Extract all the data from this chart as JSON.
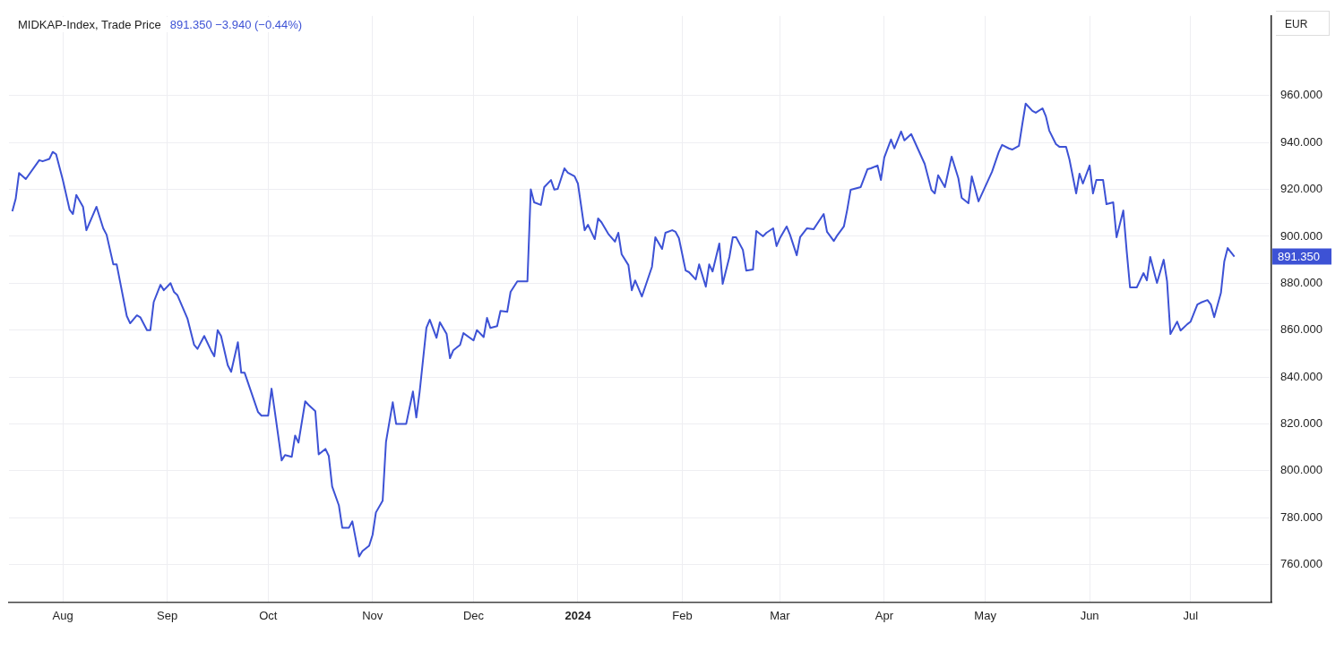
{
  "chart_data": {
    "type": "line",
    "title": "MIDKAP-Index, Trade Price",
    "subtitle": "891.350 −3.940 (−0.44%)",
    "ylabel": "EUR",
    "x": [
      "2023-07-17",
      "2023-07-18",
      "2023-07-19",
      "2023-07-21",
      "2023-07-25",
      "2023-07-26",
      "2023-07-28",
      "2023-07-29",
      "2023-07-30",
      "2023-08-01",
      "2023-08-03",
      "2023-08-04",
      "2023-08-05",
      "2023-08-07",
      "2023-08-08",
      "2023-08-11",
      "2023-08-13",
      "2023-08-14",
      "2023-08-16",
      "2023-08-17",
      "2023-08-20",
      "2023-08-21",
      "2023-08-23",
      "2023-08-24",
      "2023-08-26",
      "2023-08-27",
      "2023-08-28",
      "2023-08-30",
      "2023-08-31",
      "2023-09-02",
      "2023-09-03",
      "2023-09-04",
      "2023-09-07",
      "2023-09-09",
      "2023-09-10",
      "2023-09-12",
      "2023-09-14",
      "2023-09-15",
      "2023-09-16",
      "2023-09-17",
      "2023-09-19",
      "2023-09-20",
      "2023-09-22",
      "2023-09-23",
      "2023-09-24",
      "2023-09-28",
      "2023-09-29",
      "2023-10-01",
      "2023-10-02",
      "2023-10-03",
      "2023-10-05",
      "2023-10-06",
      "2023-10-08",
      "2023-10-09",
      "2023-10-10",
      "2023-10-12",
      "2023-10-13",
      "2023-10-15",
      "2023-10-16",
      "2023-10-18",
      "2023-10-19",
      "2023-10-20",
      "2023-10-22",
      "2023-10-23",
      "2023-10-25",
      "2023-10-26",
      "2023-10-28",
      "2023-10-29",
      "2023-10-31",
      "2023-11-01",
      "2023-11-02",
      "2023-11-04",
      "2023-11-05",
      "2023-11-07",
      "2023-11-08",
      "2023-11-10",
      "2023-11-11",
      "2023-11-13",
      "2023-11-14",
      "2023-11-15",
      "2023-11-17",
      "2023-11-18",
      "2023-11-20",
      "2023-11-21",
      "2023-11-23",
      "2023-11-24",
      "2023-11-25",
      "2023-11-27",
      "2023-11-28",
      "2023-12-01",
      "2023-12-02",
      "2023-12-04",
      "2023-12-05",
      "2023-12-06",
      "2023-12-08",
      "2023-12-09",
      "2023-12-11",
      "2023-12-12",
      "2023-12-14",
      "2023-12-17",
      "2023-12-18",
      "2023-12-19",
      "2023-12-21",
      "2023-12-22",
      "2023-12-24",
      "2023-12-25",
      "2023-12-26",
      "2023-12-28",
      "2023-12-29",
      "2023-12-31",
      "2024-01-01",
      "2024-01-03",
      "2024-01-04",
      "2024-01-06",
      "2024-01-07",
      "2024-01-08",
      "2024-01-10",
      "2024-01-12",
      "2024-01-13",
      "2024-01-14",
      "2024-01-16",
      "2024-01-17",
      "2024-01-18",
      "2024-01-20",
      "2024-01-23",
      "2024-01-24",
      "2024-01-26",
      "2024-01-27",
      "2024-01-29",
      "2024-01-30",
      "2024-01-31",
      "2024-02-02",
      "2024-02-03",
      "2024-02-05",
      "2024-02-06",
      "2024-02-08",
      "2024-02-09",
      "2024-02-10",
      "2024-02-12",
      "2024-02-13",
      "2024-02-15",
      "2024-02-16",
      "2024-02-17",
      "2024-02-19",
      "2024-02-20",
      "2024-02-22",
      "2024-02-23",
      "2024-02-25",
      "2024-02-26",
      "2024-02-28",
      "2024-02-29",
      "2024-03-01",
      "2024-03-03",
      "2024-03-04",
      "2024-03-06",
      "2024-03-07",
      "2024-03-09",
      "2024-03-11",
      "2024-03-14",
      "2024-03-15",
      "2024-03-17",
      "2024-03-18",
      "2024-03-20",
      "2024-03-21",
      "2024-03-22",
      "2024-03-24",
      "2024-03-25",
      "2024-03-27",
      "2024-03-28",
      "2024-03-30",
      "2024-03-31",
      "2024-04-01",
      "2024-04-03",
      "2024-04-04",
      "2024-04-06",
      "2024-04-07",
      "2024-04-09",
      "2024-04-13",
      "2024-04-15",
      "2024-04-16",
      "2024-04-17",
      "2024-04-19",
      "2024-04-21",
      "2024-04-23",
      "2024-04-24",
      "2024-04-26",
      "2024-04-27",
      "2024-04-29",
      "2024-05-03",
      "2024-05-05",
      "2024-05-06",
      "2024-05-08",
      "2024-05-09",
      "2024-05-11",
      "2024-05-12",
      "2024-05-13",
      "2024-05-15",
      "2024-05-16",
      "2024-05-18",
      "2024-05-19",
      "2024-05-20",
      "2024-05-22",
      "2024-05-23",
      "2024-05-25",
      "2024-05-26",
      "2024-05-28",
      "2024-05-29",
      "2024-05-30",
      "2024-06-01",
      "2024-06-02",
      "2024-06-03",
      "2024-06-05",
      "2024-06-06",
      "2024-06-08",
      "2024-06-09",
      "2024-06-11",
      "2024-06-12",
      "2024-06-13",
      "2024-06-15",
      "2024-06-17",
      "2024-06-18",
      "2024-06-19",
      "2024-06-21",
      "2024-06-23",
      "2024-06-24",
      "2024-06-25",
      "2024-06-27",
      "2024-06-28",
      "2024-06-30",
      "2024-07-01",
      "2024-07-03",
      "2024-07-04",
      "2024-07-06",
      "2024-07-07",
      "2024-07-08",
      "2024-07-10",
      "2024-07-11",
      "2024-07-12",
      "2024-07-14"
    ],
    "series": [
      {
        "color": "#3d52d5",
        "values": [
          910.7,
          916,
          927,
          924.4,
          932.5,
          932,
          933,
          936,
          935,
          924,
          911.4,
          909.5,
          917.6,
          912.6,
          902.6,
          912.6,
          903.4,
          900.7,
          888,
          888,
          866,
          862.9,
          866.3,
          865.5,
          860,
          860,
          872,
          879.3,
          877,
          880,
          876.3,
          875,
          865,
          853.7,
          852,
          857.5,
          851.4,
          848.8,
          860,
          857.5,
          845,
          842.2,
          854.8,
          841.8,
          841.8,
          825,
          823.5,
          823.5,
          835,
          825,
          804.4,
          806.7,
          805.9,
          815,
          812,
          829.6,
          828.1,
          825.4,
          807,
          809.3,
          806.3,
          793.3,
          785.2,
          775.7,
          775.7,
          778.4,
          763.4,
          765.7,
          768,
          772.6,
          782.2,
          787.2,
          812.4,
          829.2,
          820,
          820,
          820,
          833.8,
          822.7,
          833.8,
          861,
          864.4,
          856.7,
          863.3,
          858.3,
          848,
          851.4,
          853.7,
          858.7,
          855.6,
          860,
          857,
          865.2,
          860.9,
          861.7,
          868.2,
          867.8,
          876.3,
          880.8,
          880.8,
          920,
          914.5,
          913.4,
          921,
          924,
          919.9,
          920.2,
          929,
          927.1,
          925.6,
          922.5,
          902.6,
          904.9,
          898.8,
          907.6,
          906,
          901.1,
          897.7,
          901.5,
          892.3,
          887.7,
          877,
          881.2,
          874.3,
          887,
          899.6,
          894.6,
          901.5,
          902.6,
          901.9,
          899.2,
          885.4,
          884.7,
          881.6,
          888,
          878.5,
          888,
          885,
          896.9,
          879.7,
          891.2,
          899.6,
          899.6,
          894.2,
          885.4,
          885.8,
          902.3,
          900,
          901.5,
          903.4,
          895.8,
          899.2,
          904.2,
          900.7,
          891.9,
          899.6,
          903.4,
          903,
          909.5,
          901.9,
          898,
          900.3,
          904.2,
          911.4,
          919.8,
          920.6,
          921,
          928.6,
          929,
          930.2,
          924,
          933.6,
          941.3,
          937.5,
          944.7,
          940.9,
          943.6,
          930.9,
          919.8,
          918.3,
          926,
          921,
          934,
          924.8,
          916.4,
          914.1,
          925.6,
          914.9,
          927.5,
          935.9,
          939,
          937.5,
          937,
          938.6,
          947.8,
          956.6,
          953.5,
          952.7,
          954.6,
          951.2,
          945.1,
          939.3,
          938.2,
          938.2,
          932.8,
          918.3,
          926.7,
          922.5,
          930.2,
          918.3,
          924,
          924,
          913.7,
          914.5,
          899.6,
          911,
          893.8,
          878.2,
          878.2,
          884.3,
          881.2,
          891.2,
          880.1,
          890,
          880.8,
          858.3,
          863.6,
          859.8,
          862.5,
          863.6,
          870.9,
          871.7,
          872.8,
          870.9,
          865.5,
          875.9,
          889.3,
          895,
          891.35
        ]
      }
    ],
    "xlim": [
      "2023-07-16",
      "2024-07-25"
    ],
    "xticks": [
      {
        "value": "2023-08-01",
        "label": "Aug"
      },
      {
        "value": "2023-09-01",
        "label": "Sep"
      },
      {
        "value": "2023-10-01",
        "label": "Oct"
      },
      {
        "value": "2023-11-01",
        "label": "Nov"
      },
      {
        "value": "2023-12-01",
        "label": "Dec"
      },
      {
        "value": "2024-01-01",
        "label": "2024"
      },
      {
        "value": "2024-02-01",
        "label": "Feb"
      },
      {
        "value": "2024-03-01",
        "label": "Mar"
      },
      {
        "value": "2024-04-01",
        "label": "Apr"
      },
      {
        "value": "2024-05-01",
        "label": "May"
      },
      {
        "value": "2024-06-01",
        "label": "Jun"
      },
      {
        "value": "2024-07-01",
        "label": "Jul"
      }
    ],
    "ylim": [
      744,
      994
    ],
    "yticks": [
      {
        "value": 760,
        "label": "760.000"
      },
      {
        "value": 780,
        "label": "780.000"
      },
      {
        "value": 800,
        "label": "800.000"
      },
      {
        "value": 820,
        "label": "820.000"
      },
      {
        "value": 840,
        "label": "840.000"
      },
      {
        "value": 860,
        "label": "860.000"
      },
      {
        "value": 880,
        "label": "880.000"
      },
      {
        "value": 900,
        "label": "900.000"
      },
      {
        "value": 920,
        "label": "920.000"
      },
      {
        "value": 940,
        "label": "940.000"
      },
      {
        "value": 960,
        "label": "960.000"
      }
    ],
    "annotations": [
      "891.350"
    ],
    "grid": true,
    "legend": false,
    "marker": "none",
    "line_style": "solid"
  }
}
